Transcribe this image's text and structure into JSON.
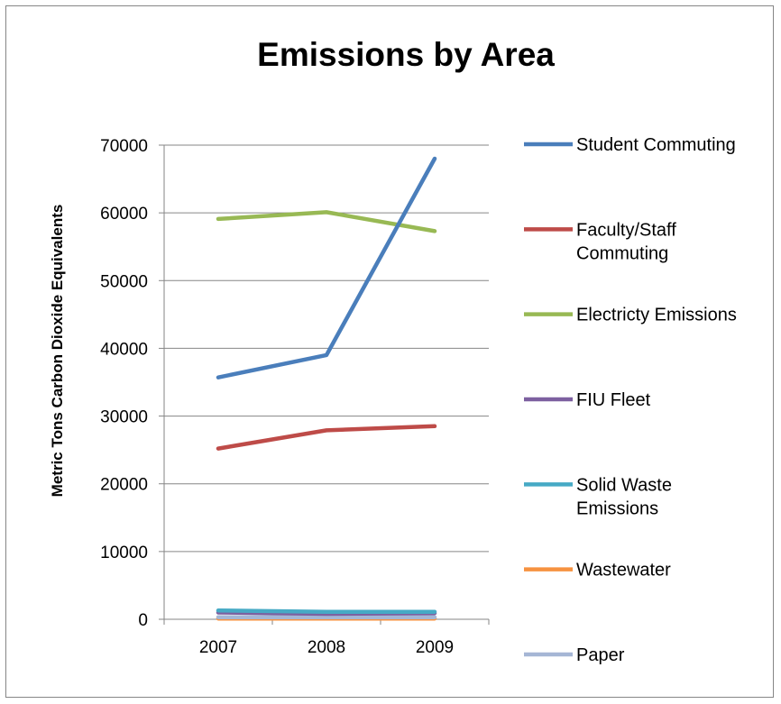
{
  "chart_data": {
    "type": "line",
    "title": "Emissions by Area",
    "xlabel": "",
    "ylabel": "Metric Tons Carbon Dioxide Equivalents",
    "categories": [
      "2007",
      "2008",
      "2009"
    ],
    "ylim": [
      0,
      70000
    ],
    "yticks": [
      0,
      10000,
      20000,
      30000,
      40000,
      50000,
      60000,
      70000
    ],
    "grid": true,
    "legend": "right",
    "series": [
      {
        "name": "Student Commuting",
        "label_lines": [
          "Student Commuting"
        ],
        "color": "#4a7ebb",
        "values": [
          35700,
          39000,
          68000
        ]
      },
      {
        "name": "Faculty/Staff Commuting",
        "label_lines": [
          "Faculty/Staff",
          "Commuting"
        ],
        "color": "#be4b48",
        "values": [
          25200,
          27900,
          28500
        ]
      },
      {
        "name": "Electricty Emissions",
        "label_lines": [
          "Electricty Emissions"
        ],
        "color": "#98b954",
        "values": [
          59100,
          60100,
          57300
        ]
      },
      {
        "name": "FIU Fleet",
        "label_lines": [
          "FIU Fleet"
        ],
        "color": "#7d60a0",
        "values": [
          1000,
          800,
          900
        ]
      },
      {
        "name": "Solid Waste Emissions",
        "label_lines": [
          "Solid Waste",
          "Emissions"
        ],
        "color": "#46aac5",
        "values": [
          1300,
          1100,
          1100
        ]
      },
      {
        "name": "Wastewater",
        "label_lines": [
          "Wastewater"
        ],
        "color": "#f69240",
        "values": [
          100,
          100,
          100
        ]
      },
      {
        "name": "Paper",
        "label_lines": [
          "Paper"
        ],
        "color": "#a5b6d5",
        "values": [
          300,
          300,
          300
        ]
      }
    ]
  }
}
